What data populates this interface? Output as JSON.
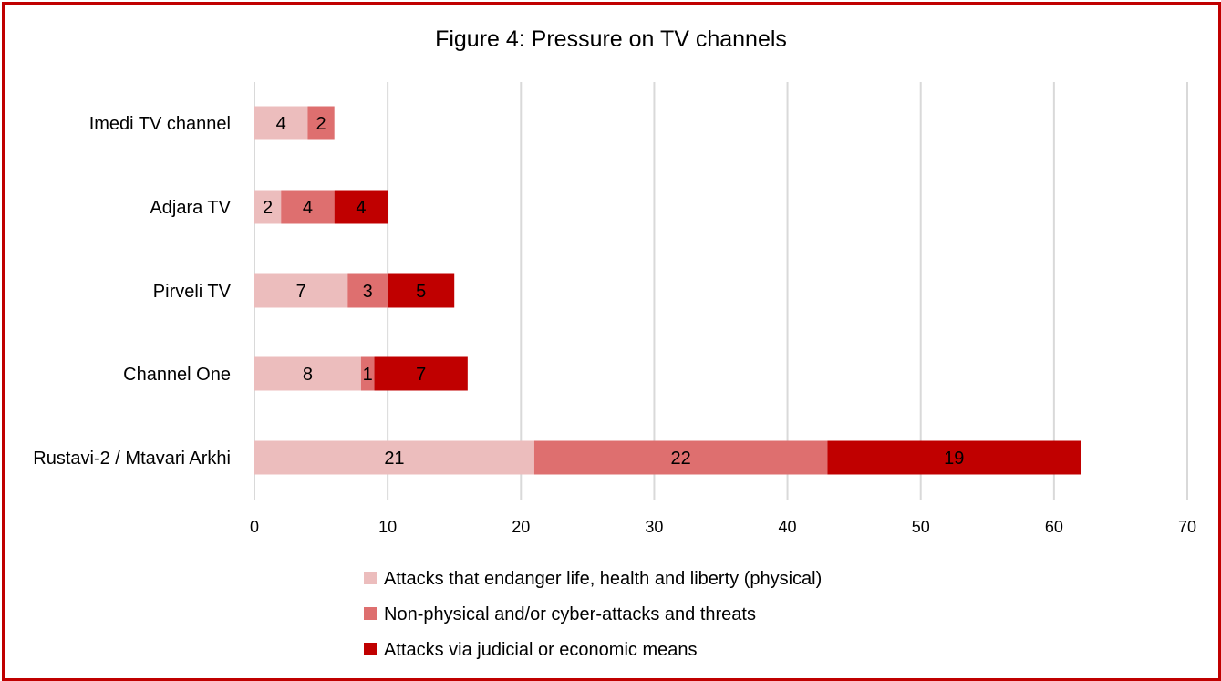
{
  "chart_data": {
    "type": "bar",
    "orientation": "horizontal",
    "stacked": true,
    "title": "Figure 4: Pressure on TV channels",
    "categories": [
      "Imedi TV channel",
      "Adjara TV",
      "Pirveli TV",
      "Channel One",
      "Rustavi-2 / Mtavari Arkhi"
    ],
    "series": [
      {
        "name": "Attacks that endanger life, health and liberty (physical)",
        "values": [
          4,
          2,
          7,
          8,
          21
        ],
        "color": "#ECBDBD"
      },
      {
        "name": "Non-physical and/or cyber-attacks and threats",
        "values": [
          2,
          4,
          3,
          1,
          22
        ],
        "color": "#DE6F6F"
      },
      {
        "name": "Attacks via judicial or economic means",
        "values": [
          0,
          4,
          5,
          7,
          19
        ],
        "color": "#C00000"
      }
    ],
    "xlim": [
      0,
      70
    ],
    "xticks": [
      "0",
      "10",
      "20",
      "30",
      "40",
      "50",
      "60",
      "70"
    ],
    "grid": true,
    "legend_position": "bottom"
  },
  "colors": {
    "border": "#C00000",
    "gridline": "#D9D9D9",
    "axis": "#D9D9D9"
  }
}
